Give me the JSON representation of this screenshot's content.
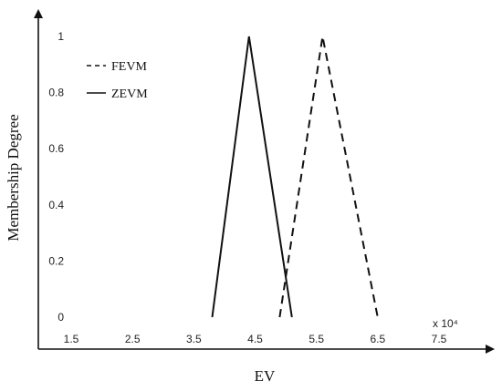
{
  "chart_data": {
    "type": "line",
    "xlabel": "EV",
    "ylabel": "Membership Degree",
    "x_multiplier_label": "x 10⁴",
    "xlim": [
      1.5,
      7.5
    ],
    "ylim": [
      0,
      1
    ],
    "xticks": [
      "1.5",
      "2.5",
      "3.5",
      "4.5",
      "5.5",
      "6.5",
      "7.5"
    ],
    "yticks": [
      "0",
      "0.2",
      "0.4",
      "0.6",
      "0.8",
      "1"
    ],
    "grid": false,
    "legend_position": "top-left",
    "series": [
      {
        "name": "FEVM",
        "style": "dashed",
        "color": "#111111",
        "points": [
          [
            4.9,
            0
          ],
          [
            5.6,
            1
          ],
          [
            6.5,
            0
          ]
        ]
      },
      {
        "name": "ZEVM",
        "style": "solid",
        "color": "#111111",
        "points": [
          [
            3.8,
            0
          ],
          [
            4.4,
            1
          ],
          [
            5.1,
            0
          ]
        ]
      }
    ]
  }
}
